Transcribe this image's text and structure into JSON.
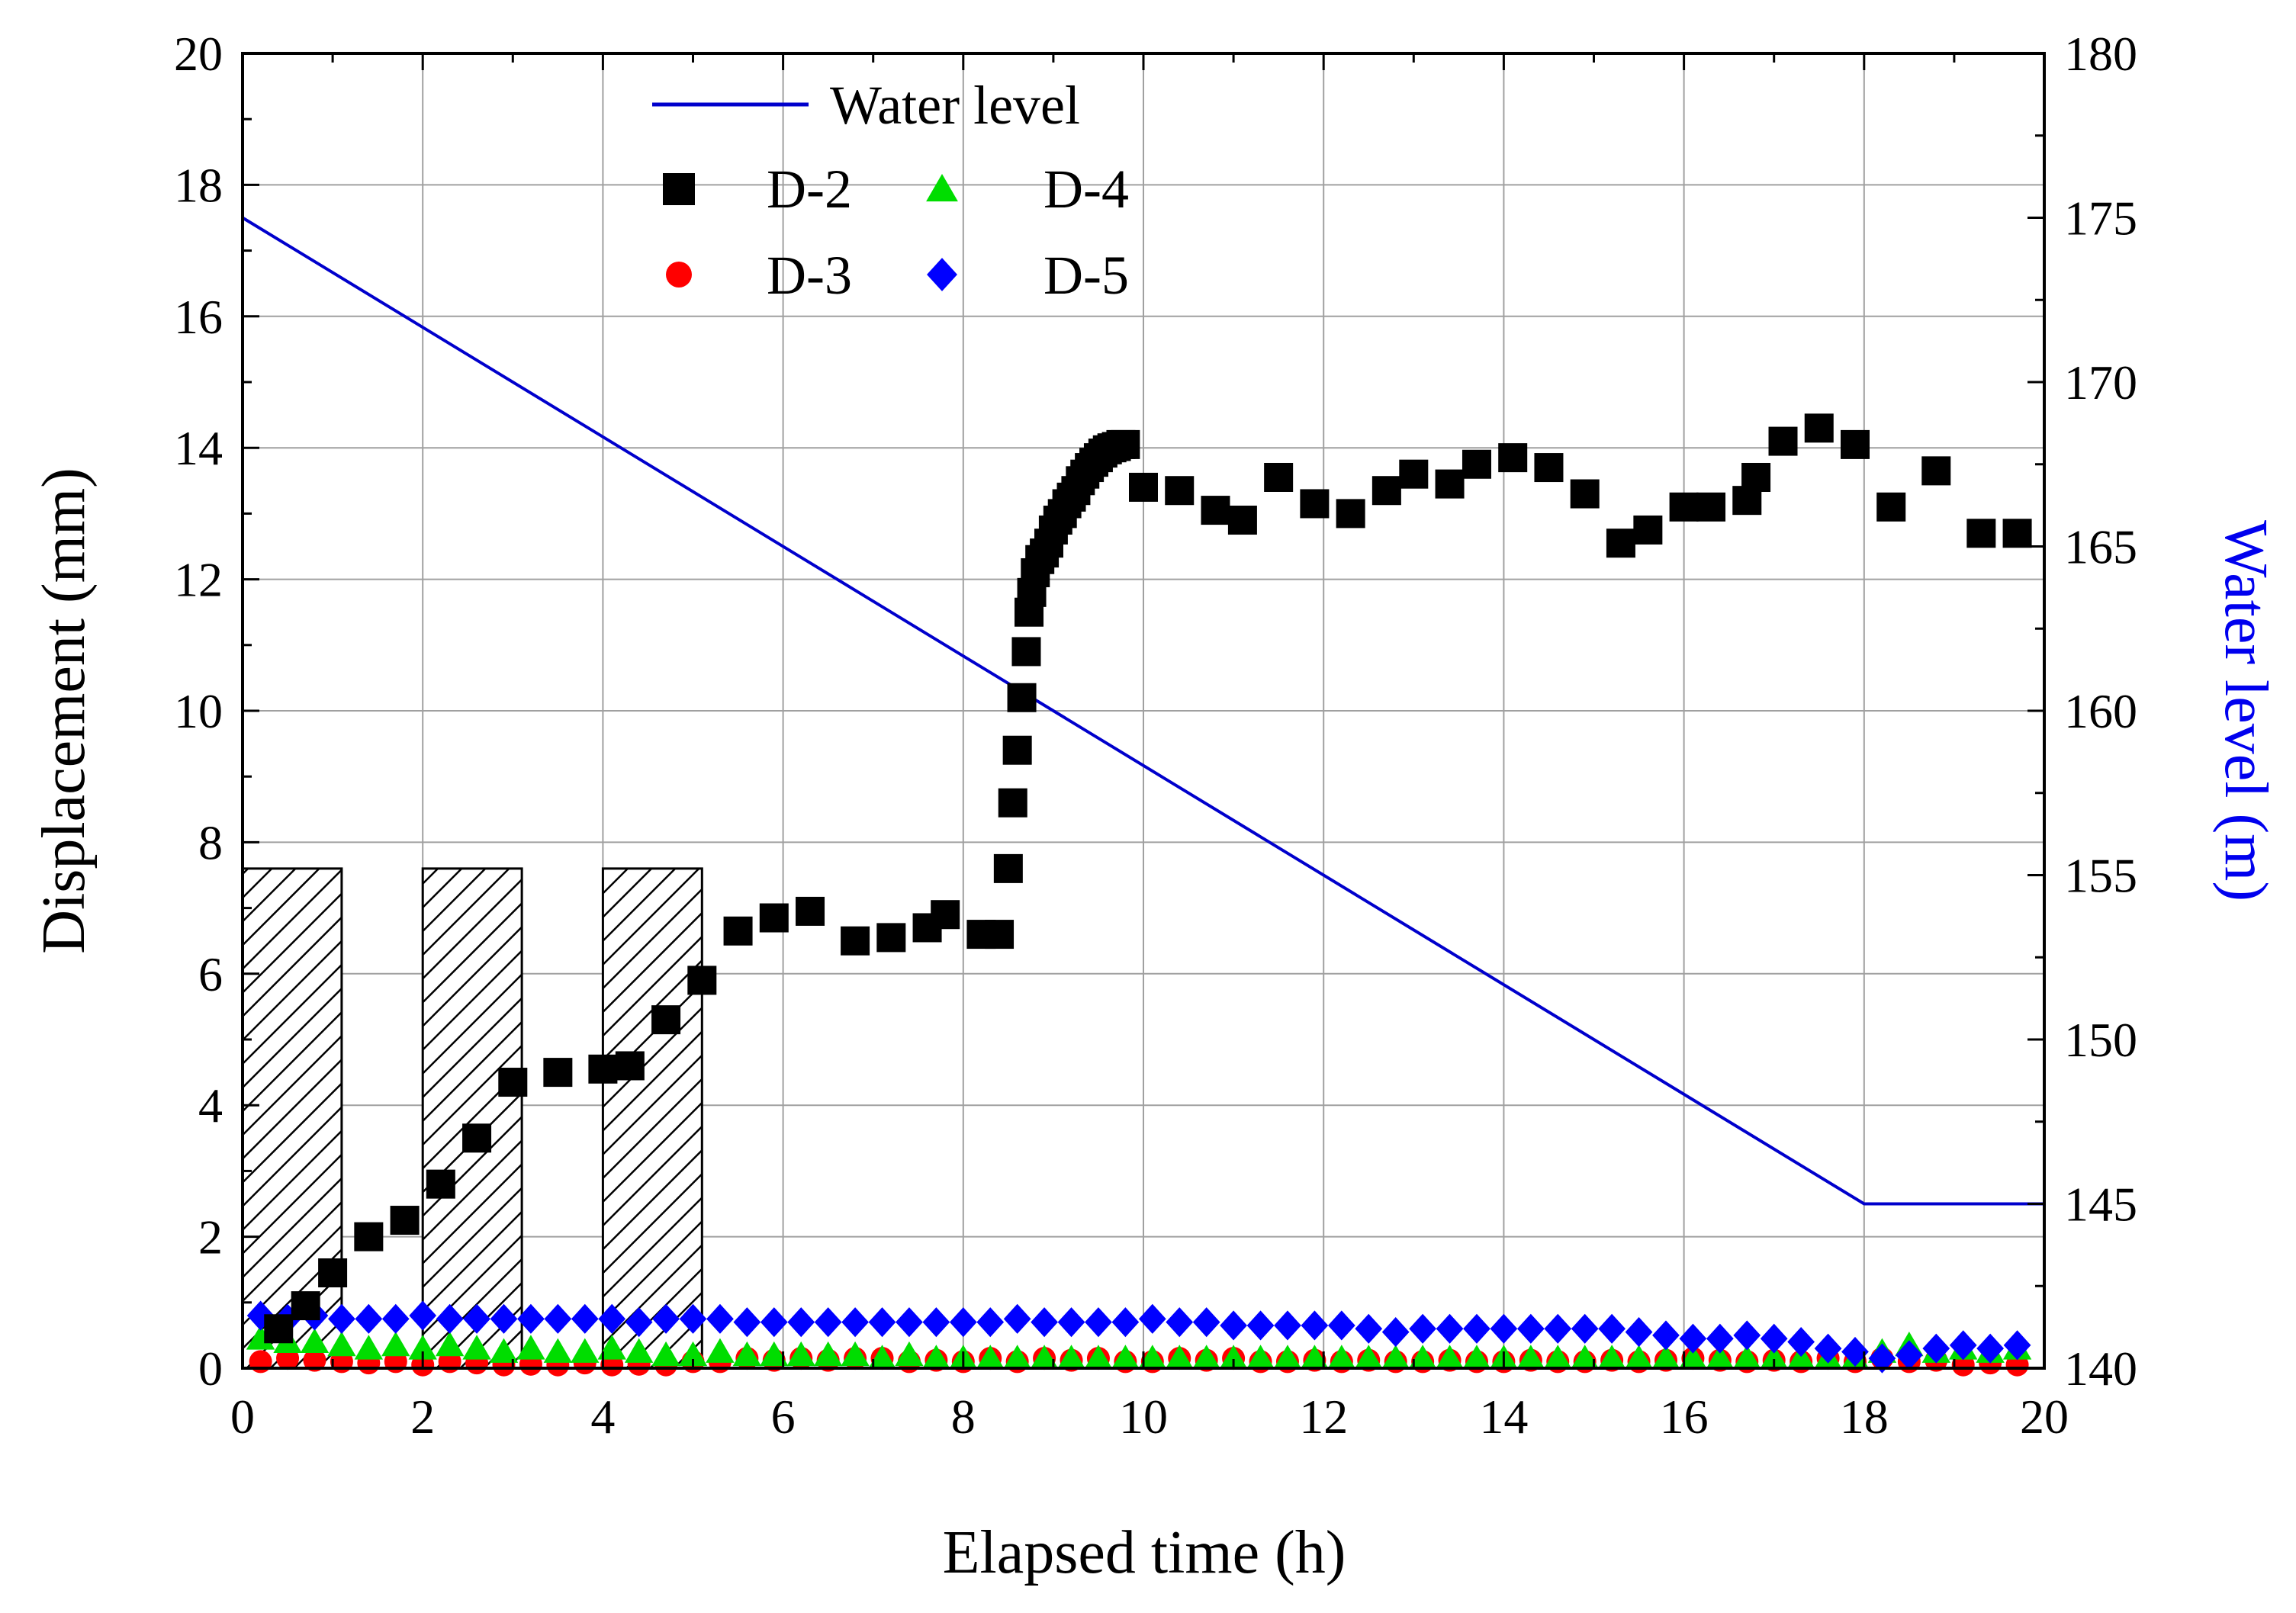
{
  "chart_data": {
    "type": "scatter",
    "xlabel": "Elapsed time (h)",
    "ylabel": "Displacement (mm)",
    "y2label": "Water level (m)",
    "xlim": [
      0,
      20
    ],
    "ylim": [
      0,
      20
    ],
    "y2lim": [
      140,
      180
    ],
    "xticks": [
      0,
      2,
      4,
      6,
      8,
      10,
      12,
      14,
      16,
      18,
      20
    ],
    "yticks": [
      0,
      2,
      4,
      6,
      8,
      10,
      12,
      14,
      16,
      18,
      20
    ],
    "y2ticks": [
      140,
      145,
      150,
      155,
      160,
      165,
      170,
      175,
      180
    ],
    "grid": true,
    "legend_position": "top-center",
    "shaded_intervals": [
      {
        "x0": 0.0,
        "x1": 1.1,
        "height": 7.6
      },
      {
        "x0": 2.0,
        "x1": 3.1,
        "height": 7.6
      },
      {
        "x0": 4.0,
        "x1": 5.1,
        "height": 7.6
      }
    ],
    "water_level": {
      "name": "Water level",
      "color": "#0000cc",
      "x": [
        0,
        18,
        20
      ],
      "y": [
        175,
        145,
        145
      ]
    },
    "series": [
      {
        "name": "D-2",
        "marker": "square",
        "color": "#000000",
        "x": [
          0.4,
          0.7,
          1.0,
          1.4,
          1.8,
          2.2,
          2.6,
          3.0,
          3.5,
          4.0,
          4.3,
          4.7,
          5.1,
          5.5,
          5.9,
          6.3,
          6.8,
          7.2,
          7.6,
          7.8,
          8.2,
          8.4,
          8.5,
          8.55,
          8.6,
          8.65,
          8.7,
          8.73,
          8.76,
          8.8,
          8.85,
          8.9,
          8.95,
          9.0,
          9.05,
          9.1,
          9.15,
          9.2,
          9.25,
          9.3,
          9.35,
          9.4,
          9.45,
          9.5,
          9.55,
          9.6,
          9.65,
          9.7,
          9.75,
          9.8,
          10.0,
          10.4,
          10.8,
          11.1,
          11.5,
          11.9,
          12.3,
          12.7,
          13.0,
          13.4,
          13.7,
          14.1,
          14.5,
          14.9,
          15.3,
          15.6,
          16.0,
          16.3,
          16.7,
          16.8,
          17.1,
          17.5,
          17.9,
          18.3,
          18.8,
          19.3,
          19.7
        ],
        "y": [
          0.6,
          0.95,
          1.45,
          2.0,
          2.25,
          2.8,
          3.5,
          4.35,
          4.5,
          4.55,
          4.6,
          5.3,
          5.9,
          6.65,
          6.85,
          6.95,
          6.5,
          6.55,
          6.7,
          6.9,
          6.6,
          6.6,
          7.6,
          8.6,
          9.4,
          10.2,
          10.9,
          11.5,
          11.8,
          12.1,
          12.3,
          12.4,
          12.55,
          12.75,
          12.9,
          13.0,
          13.15,
          13.25,
          13.35,
          13.5,
          13.6,
          13.7,
          13.78,
          13.85,
          13.92,
          13.97,
          14.0,
          14.02,
          14.05,
          14.05,
          13.4,
          13.35,
          13.05,
          12.9,
          13.55,
          13.15,
          13.0,
          13.35,
          13.6,
          13.45,
          13.75,
          13.85,
          13.7,
          13.3,
          12.55,
          12.75,
          13.1,
          13.1,
          13.2,
          13.55,
          14.1,
          14.3,
          14.05,
          13.1,
          13.65,
          12.7,
          12.7
        ]
      },
      {
        "name": "D-3",
        "marker": "circle",
        "color": "#ff0000",
        "x": [
          0.2,
          0.5,
          0.8,
          1.1,
          1.4,
          1.7,
          2.0,
          2.3,
          2.6,
          2.9,
          3.2,
          3.5,
          3.8,
          4.1,
          4.4,
          4.7,
          5.0,
          5.3,
          5.6,
          5.9,
          6.2,
          6.5,
          6.8,
          7.1,
          7.4,
          7.7,
          8.0,
          8.3,
          8.6,
          8.9,
          9.2,
          9.5,
          9.8,
          10.1,
          10.4,
          10.7,
          11.0,
          11.3,
          11.6,
          11.9,
          12.2,
          12.5,
          12.8,
          13.1,
          13.4,
          13.7,
          14.0,
          14.3,
          14.6,
          14.9,
          15.2,
          15.5,
          15.8,
          16.1,
          16.4,
          16.7,
          17.0,
          17.3,
          17.6,
          17.9,
          18.2,
          18.5,
          18.8,
          19.1,
          19.4,
          19.7
        ],
        "y": [
          0.1,
          0.15,
          0.12,
          0.1,
          0.08,
          0.1,
          0.05,
          0.1,
          0.08,
          0.05,
          0.06,
          0.05,
          0.08,
          0.05,
          0.06,
          0.05,
          0.1,
          0.1,
          0.15,
          0.12,
          0.15,
          0.12,
          0.15,
          0.15,
          0.1,
          0.12,
          0.1,
          0.15,
          0.1,
          0.15,
          0.12,
          0.15,
          0.1,
          0.1,
          0.15,
          0.12,
          0.15,
          0.1,
          0.1,
          0.12,
          0.1,
          0.12,
          0.1,
          0.1,
          0.12,
          0.1,
          0.1,
          0.12,
          0.1,
          0.1,
          0.12,
          0.1,
          0.12,
          0.15,
          0.12,
          0.1,
          0.12,
          0.1,
          0.15,
          0.1,
          0.15,
          0.1,
          0.12,
          0.05,
          0.08,
          0.05
        ]
      },
      {
        "name": "D-4",
        "marker": "triangle",
        "color": "#00dd00",
        "x": [
          0.2,
          0.5,
          0.8,
          1.1,
          1.4,
          1.7,
          2.0,
          2.3,
          2.6,
          2.9,
          3.2,
          3.5,
          3.8,
          4.1,
          4.4,
          4.7,
          5.0,
          5.3,
          5.6,
          5.9,
          6.2,
          6.5,
          6.8,
          7.1,
          7.4,
          7.7,
          8.0,
          8.3,
          8.6,
          8.9,
          9.2,
          9.5,
          9.8,
          10.1,
          10.4,
          10.7,
          11.0,
          11.3,
          11.6,
          11.9,
          12.2,
          12.5,
          12.8,
          13.1,
          13.4,
          13.7,
          14.0,
          14.3,
          14.6,
          14.9,
          15.2,
          15.5,
          15.8,
          16.1,
          16.4,
          16.7,
          17.0,
          17.3,
          17.6,
          17.9,
          18.2,
          18.5,
          18.8,
          19.1,
          19.4,
          19.7
        ],
        "y": [
          0.45,
          0.4,
          0.4,
          0.35,
          0.3,
          0.35,
          0.3,
          0.35,
          0.3,
          0.25,
          0.3,
          0.25,
          0.25,
          0.3,
          0.25,
          0.2,
          0.2,
          0.25,
          0.2,
          0.2,
          0.2,
          0.2,
          0.2,
          0.15,
          0.2,
          0.15,
          0.15,
          0.15,
          0.15,
          0.15,
          0.15,
          0.15,
          0.15,
          0.15,
          0.15,
          0.15,
          0.15,
          0.15,
          0.15,
          0.15,
          0.15,
          0.15,
          0.15,
          0.15,
          0.15,
          0.15,
          0.15,
          0.15,
          0.15,
          0.15,
          0.15,
          0.15,
          0.15,
          0.15,
          0.15,
          0.15,
          0.15,
          0.15,
          0.15,
          0.15,
          0.25,
          0.35,
          0.25,
          0.3,
          0.25,
          0.3
        ]
      },
      {
        "name": "D-5",
        "marker": "diamond",
        "color": "#0000ff",
        "x": [
          0.2,
          0.5,
          0.8,
          1.1,
          1.4,
          1.7,
          2.0,
          2.3,
          2.6,
          2.9,
          3.2,
          3.5,
          3.8,
          4.1,
          4.4,
          4.7,
          5.0,
          5.3,
          5.6,
          5.9,
          6.2,
          6.5,
          6.8,
          7.1,
          7.4,
          7.7,
          8.0,
          8.3,
          8.6,
          8.9,
          9.2,
          9.5,
          9.8,
          10.1,
          10.4,
          10.7,
          11.0,
          11.3,
          11.6,
          11.9,
          12.2,
          12.5,
          12.8,
          13.1,
          13.4,
          13.7,
          14.0,
          14.3,
          14.6,
          14.9,
          15.2,
          15.5,
          15.8,
          16.1,
          16.4,
          16.7,
          17.0,
          17.3,
          17.6,
          17.9,
          18.2,
          18.5,
          18.8,
          19.1,
          19.4,
          19.7
        ],
        "y": [
          0.8,
          0.75,
          0.8,
          0.75,
          0.75,
          0.75,
          0.8,
          0.75,
          0.75,
          0.75,
          0.75,
          0.75,
          0.75,
          0.75,
          0.7,
          0.75,
          0.75,
          0.75,
          0.7,
          0.7,
          0.7,
          0.7,
          0.7,
          0.7,
          0.7,
          0.7,
          0.7,
          0.7,
          0.75,
          0.7,
          0.7,
          0.7,
          0.7,
          0.75,
          0.7,
          0.7,
          0.65,
          0.65,
          0.65,
          0.65,
          0.65,
          0.6,
          0.55,
          0.6,
          0.6,
          0.6,
          0.6,
          0.6,
          0.6,
          0.6,
          0.6,
          0.55,
          0.5,
          0.45,
          0.45,
          0.5,
          0.45,
          0.4,
          0.3,
          0.25,
          0.15,
          0.2,
          0.3,
          0.35,
          0.3,
          0.35
        ]
      }
    ]
  }
}
